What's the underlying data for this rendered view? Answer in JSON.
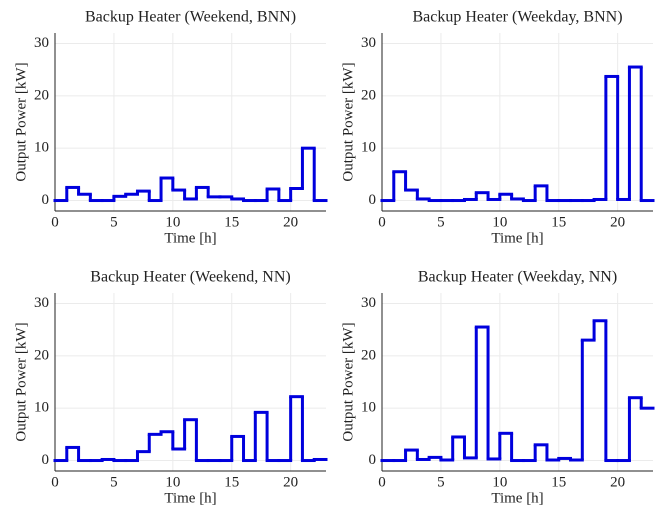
{
  "chart_data": [
    {
      "type": "step",
      "title": "Backup Heater (Weekend, BNN)",
      "xlabel": "Time [h]",
      "ylabel": "Output Power [kW]",
      "x": [
        0,
        1,
        2,
        3,
        4,
        5,
        6,
        7,
        8,
        9,
        10,
        11,
        12,
        13,
        14,
        15,
        16,
        17,
        18,
        19,
        20,
        21,
        22
      ],
      "series": [
        {
          "color": "#0000dd",
          "values": [
            0,
            2.5,
            1.2,
            0,
            0,
            0.8,
            1.2,
            1.8,
            0,
            4.3,
            2,
            0.3,
            2.5,
            0.7,
            0.7,
            0.3,
            0,
            0,
            2.2,
            0,
            2.3,
            10,
            0
          ]
        }
      ],
      "xlim": [
        0,
        23
      ],
      "ylim": [
        -2,
        32
      ],
      "xticks": [
        0,
        5,
        10,
        15,
        20
      ],
      "yticks": [
        0,
        10,
        20,
        30
      ],
      "grid": true
    },
    {
      "type": "step",
      "title": "Backup Heater (Weekday, BNN)",
      "xlabel": "Time [h]",
      "ylabel": "Output Power [kW]",
      "x": [
        0,
        1,
        2,
        3,
        4,
        5,
        6,
        7,
        8,
        9,
        10,
        11,
        12,
        13,
        14,
        15,
        16,
        17,
        18,
        19,
        20,
        21,
        22
      ],
      "series": [
        {
          "color": "#0000dd",
          "values": [
            0,
            5.5,
            2,
            0.3,
            0,
            0,
            0,
            0.2,
            1.5,
            0.2,
            1.2,
            0.3,
            0,
            2.8,
            0,
            0,
            0,
            0,
            0.2,
            23.7,
            0.2,
            25.5,
            0
          ]
        }
      ],
      "xlim": [
        0,
        23
      ],
      "ylim": [
        -2,
        32
      ],
      "xticks": [
        0,
        5,
        10,
        15,
        20
      ],
      "yticks": [
        0,
        10,
        20,
        30
      ],
      "grid": true
    },
    {
      "type": "step",
      "title": "Backup Heater (Weekend, NN)",
      "xlabel": "Time [h]",
      "ylabel": "Output Power [kW]",
      "x": [
        0,
        1,
        2,
        3,
        4,
        5,
        6,
        7,
        8,
        9,
        10,
        11,
        12,
        13,
        14,
        15,
        16,
        17,
        18,
        19,
        20,
        21,
        22
      ],
      "series": [
        {
          "color": "#0000dd",
          "values": [
            0,
            2.5,
            0,
            0,
            0.2,
            0,
            0,
            1.7,
            5,
            5.5,
            2.2,
            7.8,
            0,
            0,
            0,
            4.6,
            0,
            9.2,
            0,
            0,
            12.2,
            0,
            0.2
          ]
        }
      ],
      "xlim": [
        0,
        23
      ],
      "ylim": [
        -2,
        32
      ],
      "xticks": [
        0,
        5,
        10,
        15,
        20
      ],
      "yticks": [
        0,
        10,
        20,
        30
      ],
      "grid": true
    },
    {
      "type": "step",
      "title": "Backup Heater (Weekday, NN)",
      "xlabel": "Time [h]",
      "ylabel": "Output Power [kW]",
      "x": [
        0,
        1,
        2,
        3,
        4,
        5,
        6,
        7,
        8,
        9,
        10,
        11,
        12,
        13,
        14,
        15,
        16,
        17,
        18,
        19,
        20,
        21,
        22
      ],
      "series": [
        {
          "color": "#0000dd",
          "values": [
            0,
            0,
            2,
            0.2,
            0.6,
            0.1,
            4.5,
            0.5,
            25.5,
            0.3,
            5.2,
            0,
            0,
            3,
            0.1,
            0.4,
            0.1,
            23,
            26.7,
            0,
            0,
            12,
            10
          ]
        }
      ],
      "xlim": [
        0,
        23
      ],
      "ylim": [
        -2,
        32
      ],
      "xticks": [
        0,
        5,
        10,
        15,
        20
      ],
      "yticks": [
        0,
        10,
        20,
        30
      ],
      "grid": true
    }
  ]
}
